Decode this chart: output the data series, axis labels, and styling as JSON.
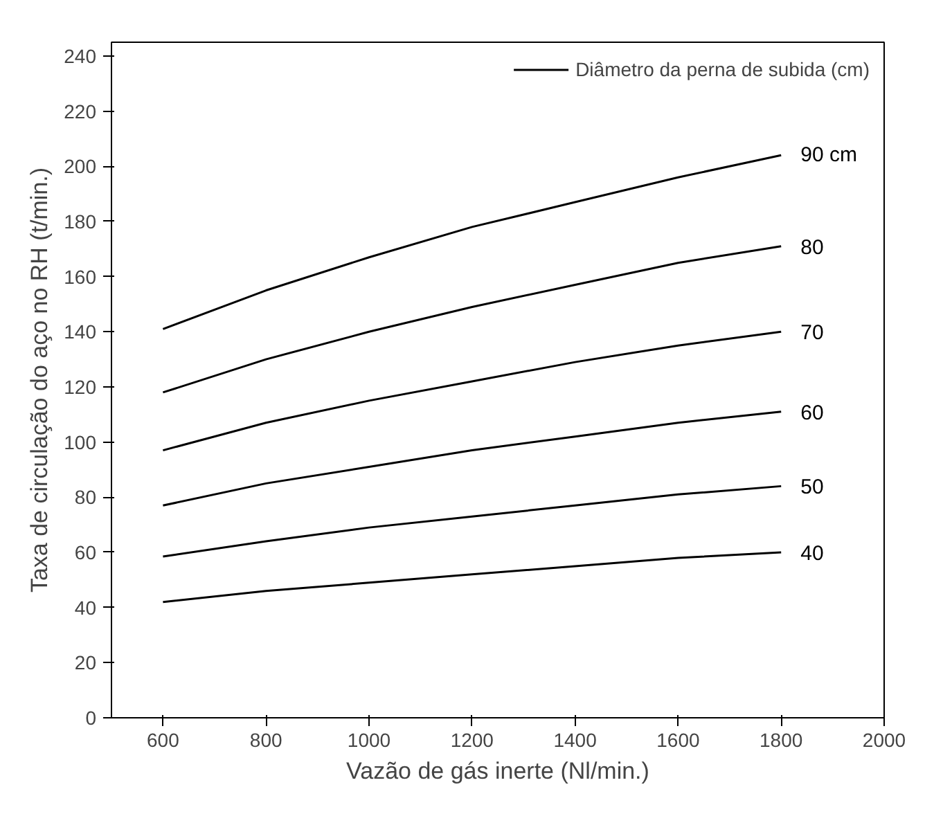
{
  "chart_data": {
    "type": "line",
    "xlabel": "Vazão de gás inerte (Nl/min.)",
    "ylabel": "Taxa de circulação do aço no RH (t/min.)",
    "legend_title": "Diâmetro da perna de subida (cm)",
    "legend": "top right",
    "x": [
      600,
      800,
      1000,
      1200,
      1400,
      1600,
      1800
    ],
    "xlim": [
      500,
      2000
    ],
    "xticks": [
      600,
      800,
      1000,
      1200,
      1400,
      1600,
      1800,
      2000
    ],
    "ylim": [
      0,
      245
    ],
    "yticks": [
      0,
      20,
      40,
      60,
      80,
      100,
      120,
      140,
      160,
      180,
      200,
      220,
      240
    ],
    "grid": false,
    "marker": "none",
    "line_style": "solid",
    "series": [
      {
        "name": "90 cm",
        "color": "#000000",
        "values": [
          141,
          155,
          167,
          178,
          187,
          196,
          204
        ]
      },
      {
        "name": "80",
        "color": "#000000",
        "values": [
          118,
          130,
          140,
          149,
          157,
          165,
          171
        ]
      },
      {
        "name": "70",
        "color": "#000000",
        "values": [
          97,
          107,
          115,
          122,
          129,
          135,
          140
        ]
      },
      {
        "name": "60",
        "color": "#000000",
        "values": [
          77,
          85,
          91,
          97,
          102,
          107,
          111
        ]
      },
      {
        "name": "50",
        "color": "#000000",
        "values": [
          58.5,
          64,
          69,
          73,
          77,
          81,
          84
        ]
      },
      {
        "name": "40",
        "color": "#000000",
        "values": [
          42,
          46,
          49,
          52,
          55,
          58,
          60
        ]
      }
    ]
  }
}
